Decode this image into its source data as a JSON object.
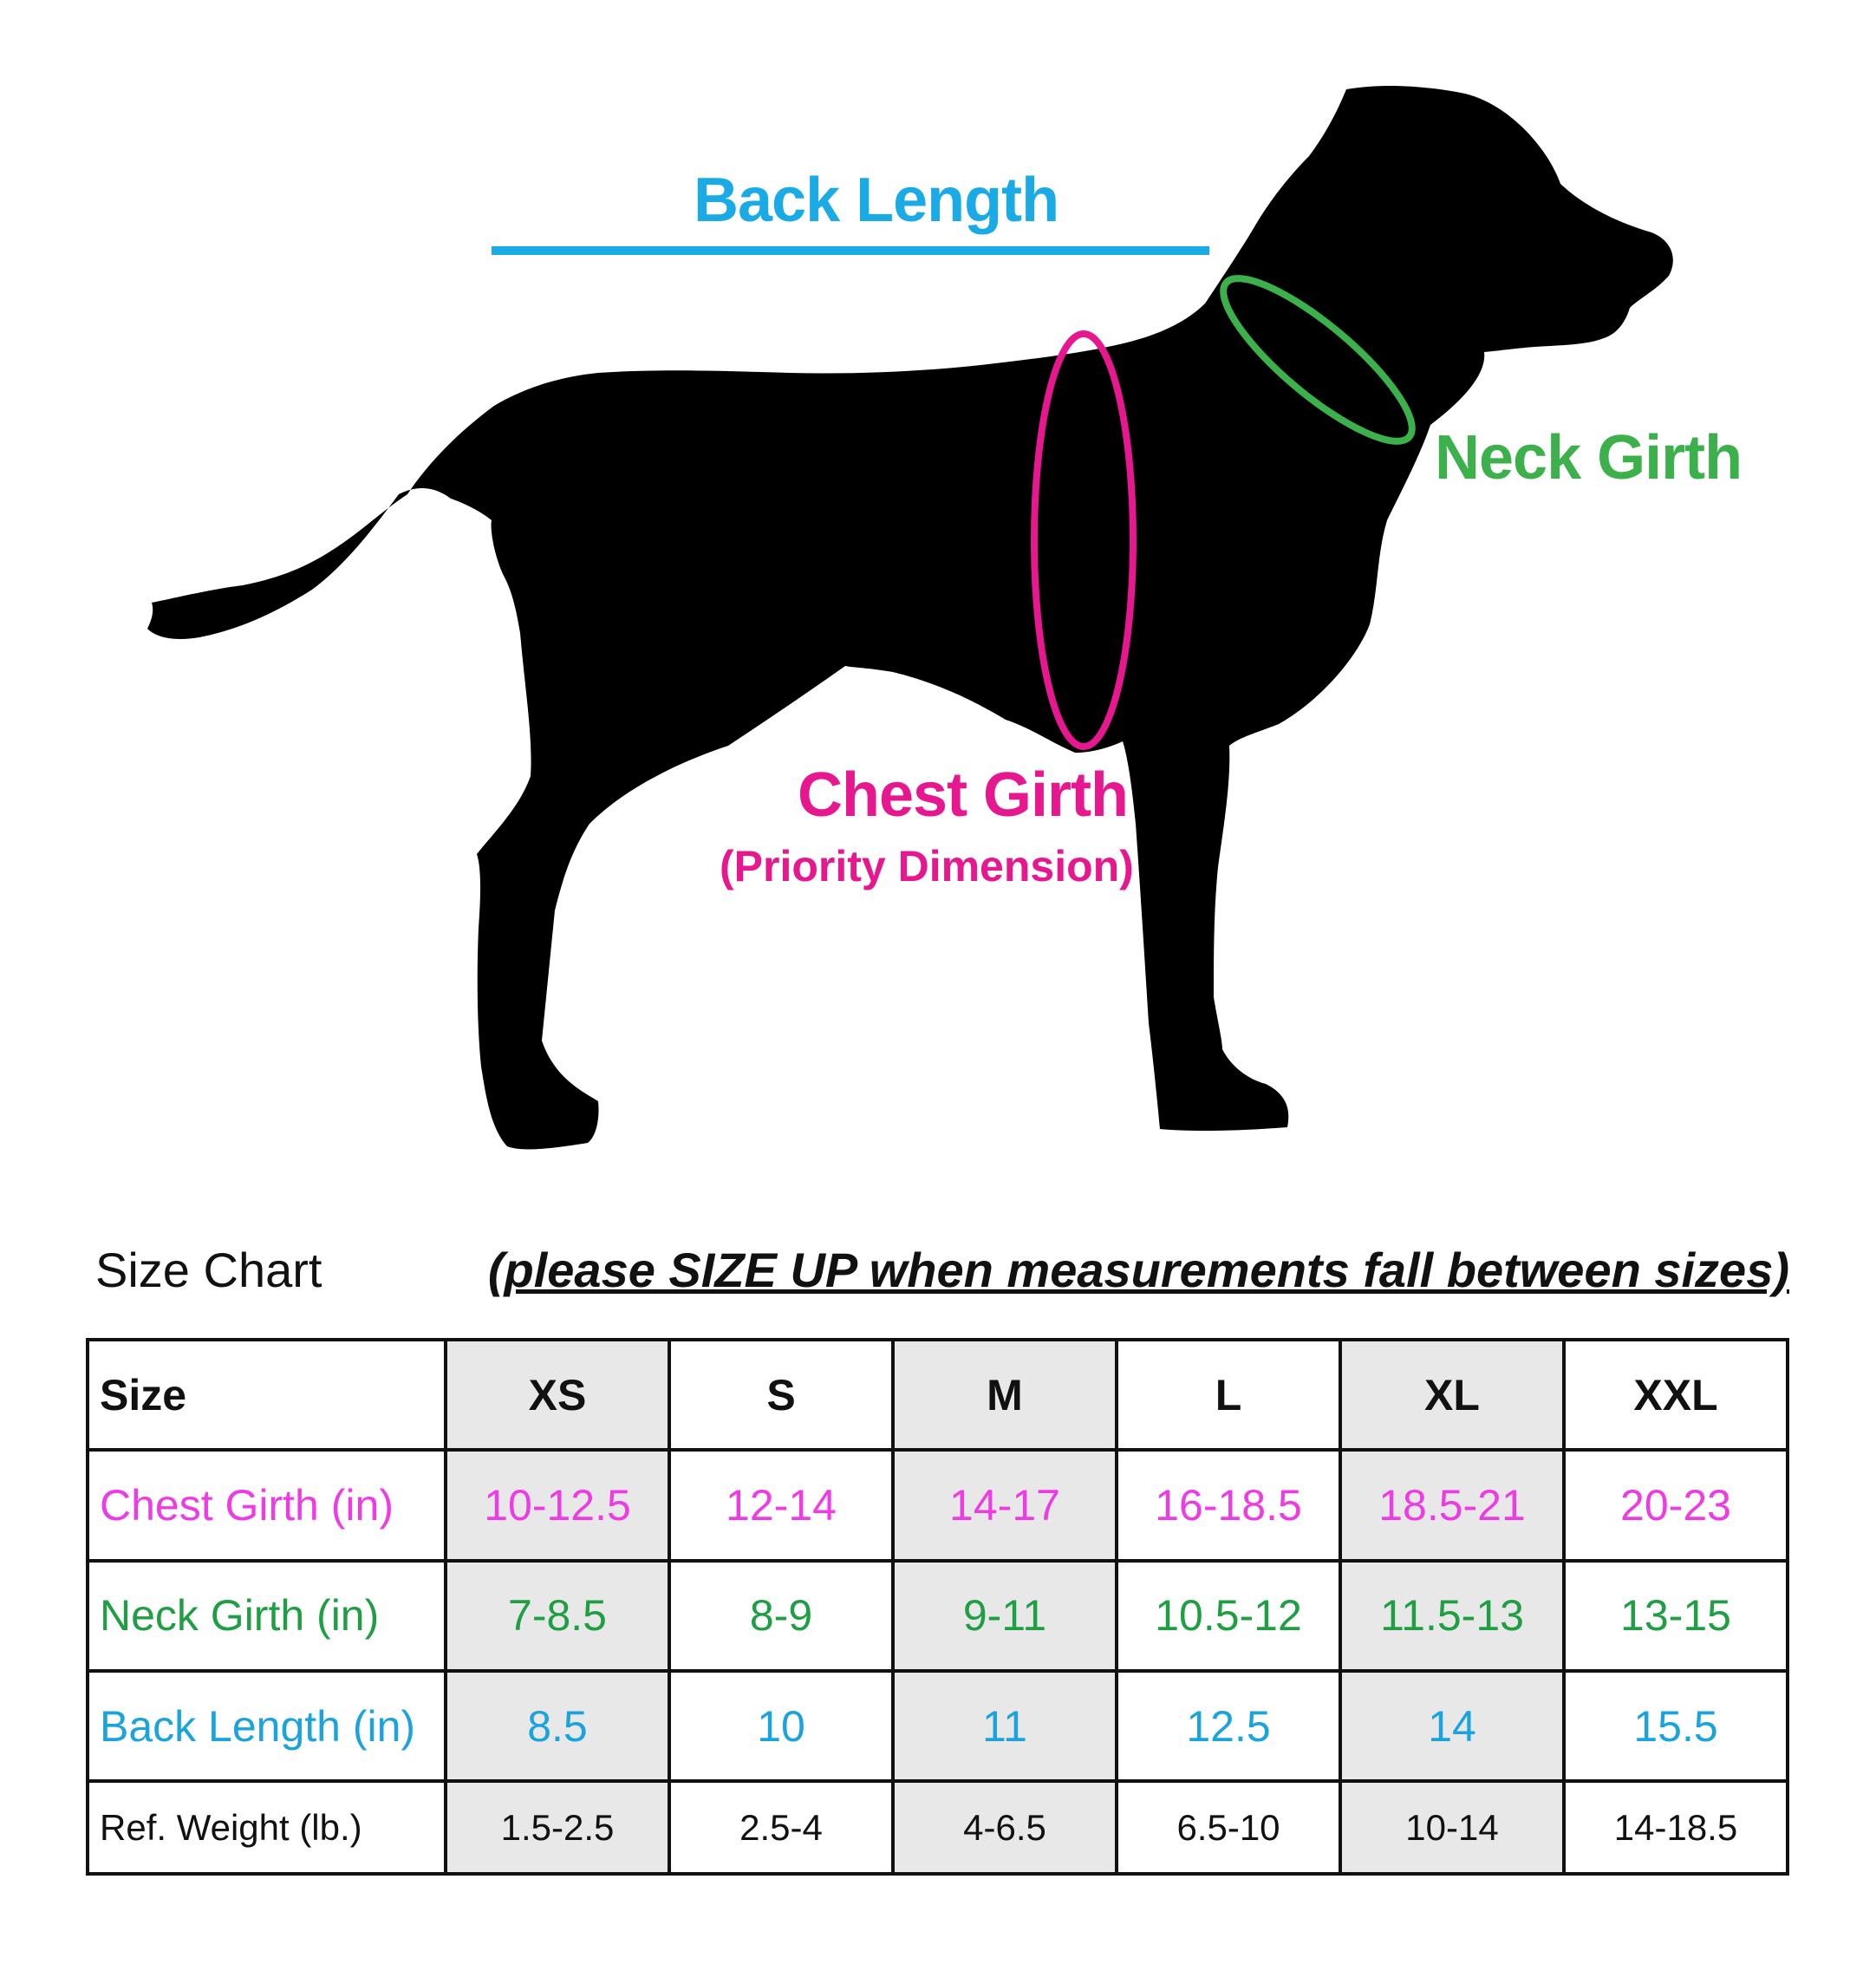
{
  "diagram": {
    "back_length_label": "Back Length",
    "neck_girth_label": "Neck Girth",
    "chest_girth_label": "Chest Girth",
    "chest_girth_note": "(Priority Dimension)",
    "icons": [
      "dog-silhouette-icon",
      "chest-girth-ring",
      "neck-girth-ring",
      "back-length-line"
    ]
  },
  "chart": {
    "title": "Size Chart",
    "note": "(please SIZE UP when measurements fall between sizes)"
  },
  "table": {
    "header": {
      "label": "Size",
      "sizes": [
        "XS",
        "S",
        "M",
        "L",
        "XL",
        "XXL"
      ]
    },
    "rows": [
      {
        "label": "Chest Girth (in)",
        "values": [
          "10-12.5",
          "12-14",
          "14-17",
          "16-18.5",
          "18.5-21",
          "20-23"
        ]
      },
      {
        "label": "Neck Girth (in)",
        "values": [
          "7-8.5",
          "8-9",
          "9-11",
          "10.5-12",
          "11.5-13",
          "13-15"
        ]
      },
      {
        "label": "Back Length (in)",
        "values": [
          "8.5",
          "10",
          "11",
          "12.5",
          "14",
          "15.5"
        ]
      },
      {
        "label": "Ref. Weight (lb.)",
        "values": [
          "1.5-2.5",
          "2.5-4",
          "4-6.5",
          "6.5-10",
          "10-14",
          "14-18.5"
        ]
      }
    ]
  },
  "colors": {
    "chest": "#e6178f",
    "chest_table": "#ee3be4",
    "neck": "#3cb04a",
    "neck_table": "#1f9e44",
    "back": "#1aabe6",
    "back_table": "#1ba3de",
    "shade": "#e8e8e8"
  }
}
